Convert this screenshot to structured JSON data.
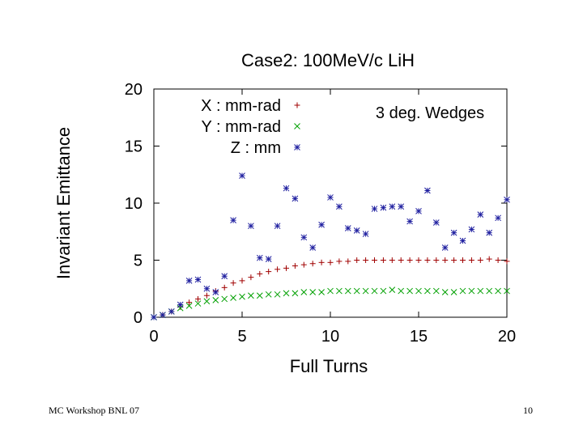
{
  "footer": {
    "left": "MC Workshop BNL 07",
    "right": "10"
  },
  "chart_data": {
    "type": "scatter",
    "title": "Case2: 100MeV/c LiH",
    "xlabel": "Full Turns",
    "ylabel": "Invariant Emittance",
    "xlim": [
      0,
      20
    ],
    "ylim": [
      0,
      20
    ],
    "xticks": [
      "0",
      "5",
      "10",
      "15",
      "20"
    ],
    "yticks": [
      "0",
      "5",
      "10",
      "15",
      "20"
    ],
    "annotation": "3 deg. Wedges",
    "series": [
      {
        "name": "X : mm-rad",
        "marker": "+",
        "color": "#a00000",
        "points": [
          [
            0,
            0
          ],
          [
            0.5,
            0.2
          ],
          [
            1,
            0.5
          ],
          [
            1.5,
            0.9
          ],
          [
            2,
            1.3
          ],
          [
            2.5,
            1.6
          ],
          [
            3,
            1.9
          ],
          [
            3.5,
            2.3
          ],
          [
            4,
            2.6
          ],
          [
            4.5,
            3.0
          ],
          [
            5,
            3.2
          ],
          [
            5.5,
            3.5
          ],
          [
            6,
            3.8
          ],
          [
            6.5,
            4.0
          ],
          [
            7,
            4.2
          ],
          [
            7.5,
            4.3
          ],
          [
            8,
            4.5
          ],
          [
            8.5,
            4.6
          ],
          [
            9,
            4.7
          ],
          [
            9.5,
            4.8
          ],
          [
            10,
            4.8
          ],
          [
            10.5,
            4.9
          ],
          [
            11,
            4.9
          ],
          [
            11.5,
            5.0
          ],
          [
            12,
            5.0
          ],
          [
            12.5,
            5.0
          ],
          [
            13,
            5.0
          ],
          [
            13.5,
            5.0
          ],
          [
            14,
            5.0
          ],
          [
            14.5,
            5.0
          ],
          [
            15,
            5.0
          ],
          [
            15.5,
            5.0
          ],
          [
            16,
            5.0
          ],
          [
            16.5,
            5.0
          ],
          [
            17,
            5.0
          ],
          [
            17.5,
            5.0
          ],
          [
            18,
            5.0
          ],
          [
            18.5,
            5.0
          ],
          [
            19,
            5.1
          ],
          [
            19.5,
            5.0
          ],
          [
            20,
            4.9
          ]
        ]
      },
      {
        "name": "Y : mm-rad",
        "marker": "x",
        "color": "#00a000",
        "points": [
          [
            0,
            0
          ],
          [
            0.5,
            0.2
          ],
          [
            1,
            0.5
          ],
          [
            1.5,
            0.8
          ],
          [
            2,
            1.0
          ],
          [
            2.5,
            1.2
          ],
          [
            3,
            1.4
          ],
          [
            3.5,
            1.5
          ],
          [
            4,
            1.6
          ],
          [
            4.5,
            1.7
          ],
          [
            5,
            1.8
          ],
          [
            5.5,
            1.9
          ],
          [
            6,
            1.9
          ],
          [
            6.5,
            2.0
          ],
          [
            7,
            2.0
          ],
          [
            7.5,
            2.1
          ],
          [
            8,
            2.1
          ],
          [
            8.5,
            2.2
          ],
          [
            9,
            2.2
          ],
          [
            9.5,
            2.2
          ],
          [
            10,
            2.3
          ],
          [
            10.5,
            2.3
          ],
          [
            11,
            2.3
          ],
          [
            11.5,
            2.3
          ],
          [
            12,
            2.3
          ],
          [
            12.5,
            2.3
          ],
          [
            13,
            2.3
          ],
          [
            13.5,
            2.4
          ],
          [
            14,
            2.3
          ],
          [
            14.5,
            2.3
          ],
          [
            15,
            2.3
          ],
          [
            15.5,
            2.3
          ],
          [
            16,
            2.3
          ],
          [
            16.5,
            2.2
          ],
          [
            17,
            2.2
          ],
          [
            17.5,
            2.3
          ],
          [
            18,
            2.3
          ],
          [
            18.5,
            2.3
          ],
          [
            19,
            2.3
          ],
          [
            19.5,
            2.3
          ],
          [
            20,
            2.3
          ]
        ]
      },
      {
        "name": "Z : mm",
        "marker": "*",
        "color": "#2020a0",
        "points": [
          [
            0,
            0
          ],
          [
            0.5,
            0.2
          ],
          [
            1,
            0.5
          ],
          [
            1.5,
            1.1
          ],
          [
            2,
            3.2
          ],
          [
            2.5,
            3.3
          ],
          [
            3,
            2.5
          ],
          [
            3.5,
            2.2
          ],
          [
            4,
            3.6
          ],
          [
            4.5,
            8.5
          ],
          [
            5,
            12.4
          ],
          [
            5.5,
            8.0
          ],
          [
            6,
            5.2
          ],
          [
            6.5,
            5.1
          ],
          [
            7,
            8.0
          ],
          [
            7.5,
            11.3
          ],
          [
            8,
            10.4
          ],
          [
            8.5,
            7.0
          ],
          [
            9,
            6.1
          ],
          [
            9.5,
            8.1
          ],
          [
            10,
            10.5
          ],
          [
            10.5,
            9.7
          ],
          [
            11,
            7.8
          ],
          [
            11.5,
            7.6
          ],
          [
            12,
            7.3
          ],
          [
            12.5,
            9.5
          ],
          [
            13,
            9.6
          ],
          [
            13.5,
            9.7
          ],
          [
            14,
            9.7
          ],
          [
            14.5,
            8.4
          ],
          [
            15,
            9.3
          ],
          [
            15.5,
            11.1
          ],
          [
            16,
            8.3
          ],
          [
            16.5,
            6.1
          ],
          [
            17,
            7.4
          ],
          [
            17.5,
            6.7
          ],
          [
            18,
            7.7
          ],
          [
            18.5,
            9.0
          ],
          [
            19,
            7.4
          ],
          [
            19.5,
            8.7
          ],
          [
            20,
            10.3
          ]
        ]
      }
    ]
  }
}
